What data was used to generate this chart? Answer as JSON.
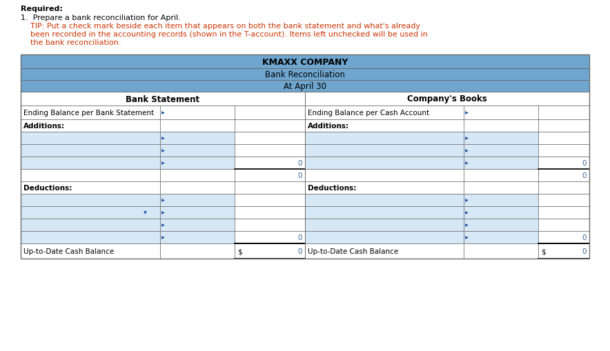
{
  "title1": "KMAXX COMPANY",
  "title2": "Bank Reconciliation",
  "title3": "At April 30",
  "header_left": "Bank Statement",
  "header_right": "Company's Books",
  "required_text": "Required:",
  "point1": "1.  Prepare a bank reconciliation for April.",
  "tip_line1": "    TIP: Put a check mark beside each item that appears on both the bank statement and what's already",
  "tip_line2": "    been recorded in the accounting records (shown in the T-account). Items left unchecked will be used in",
  "tip_line3": "    the bank reconciliation.",
  "header_bg": "#6EA6D0",
  "subheader_bg": "#6EA6D0",
  "at_april_bg": "#82B4D8",
  "white_bg": "#FFFFFF",
  "light_blue_row": "#D6E8F5",
  "border_color": "#6A6A6A",
  "blue_marker": "#2255AA",
  "text_black": "#000000",
  "text_red": "#CC3300",
  "zero_color": "#336699",
  "dollar_color": "#000000"
}
